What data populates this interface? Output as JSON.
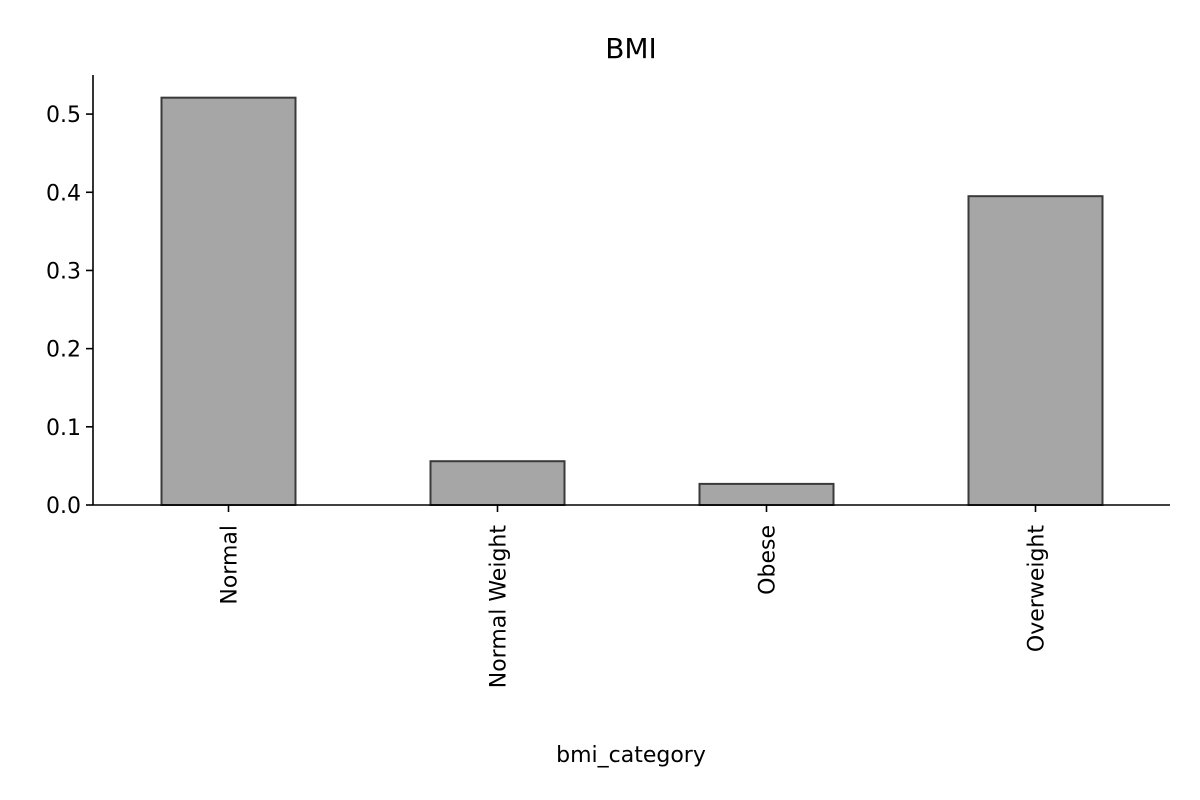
{
  "chart_data": {
    "type": "bar",
    "title": "BMI",
    "xlabel": "bmi_category",
    "ylabel": "",
    "categories": [
      "Normal",
      "Normal Weight",
      "Obese",
      "Overweight"
    ],
    "values": [
      0.521,
      0.056,
      0.027,
      0.395
    ],
    "ylim": [
      0,
      0.55
    ],
    "yticks": [
      "0.0",
      "0.1",
      "0.2",
      "0.3",
      "0.4",
      "0.5"
    ],
    "grid": false,
    "colors": {
      "bar_fill": "#a6a6a6",
      "bar_edge": "#3a3a3a"
    }
  }
}
